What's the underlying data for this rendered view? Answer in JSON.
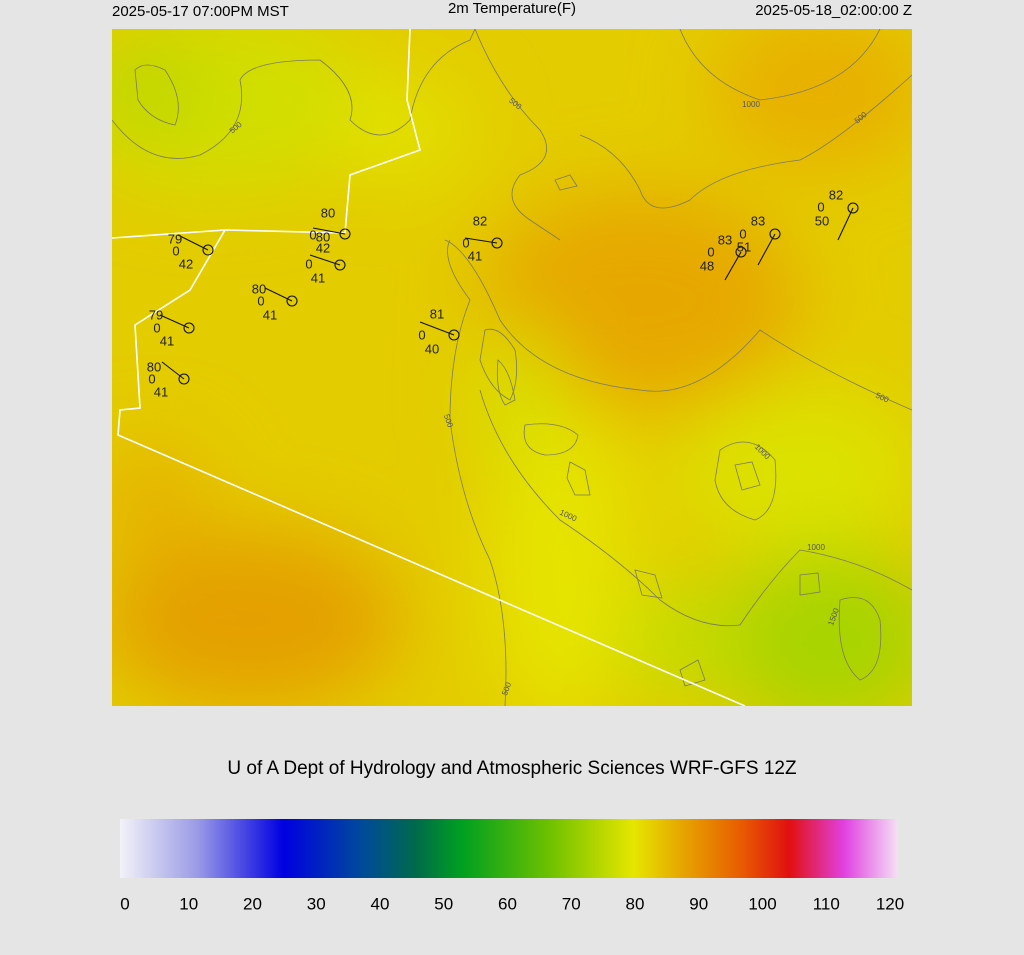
{
  "header": {
    "left": "2025-05-17 07:00PM MST",
    "title": "2m Temperature(F)",
    "right": "2025-05-18_02:00:00 Z"
  },
  "contour_labels": [
    "500",
    "1000",
    "500",
    "500",
    "500",
    "1000",
    "1000",
    "1000",
    "500",
    "1500",
    "500"
  ],
  "stations": [
    {
      "temperature": 79,
      "marker": 0,
      "dewpoint": 42
    },
    {
      "temperature": 80,
      "marker": 0,
      "dewpoint": 42
    },
    {
      "temperature": 80,
      "marker": 0,
      "dewpoint": 41
    },
    {
      "temperature": 80,
      "marker": 0,
      "dewpoint": 41
    },
    {
      "temperature": 79,
      "marker": 0,
      "dewpoint": 41
    },
    {
      "temperature": 80,
      "marker": 0,
      "dewpoint": 41
    },
    {
      "temperature": 82,
      "marker": 0,
      "dewpoint": 41
    },
    {
      "temperature": 81,
      "marker": 0,
      "dewpoint": 40
    },
    {
      "temperature": 83,
      "marker": 0,
      "dewpoint": 48
    },
    {
      "temperature": 83,
      "marker": 0,
      "dewpoint": 51
    },
    {
      "temperature": 82,
      "marker": 0,
      "dewpoint": 50
    }
  ],
  "credit": "U of A Dept of Hydrology and Atmospheric Sciences WRF-GFS 12Z",
  "colorbar": {
    "range": [
      0,
      120
    ],
    "ticks": [
      0,
      10,
      20,
      30,
      40,
      50,
      60,
      70,
      80,
      90,
      100,
      110,
      120
    ]
  }
}
